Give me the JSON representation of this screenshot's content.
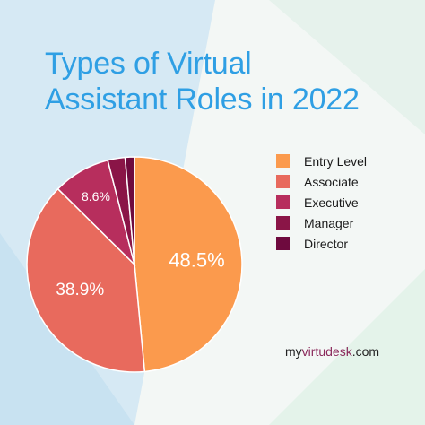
{
  "title_line1": "Types of Virtual",
  "title_line2": "Assistant Roles in 2022",
  "colors": {
    "title": "#2f9fe4",
    "entry_level": "#fb9a4d",
    "associate": "#e86a5d",
    "executive": "#b72e5d",
    "manager": "#8a1547",
    "director": "#6e0a3e"
  },
  "chart_data": {
    "type": "pie",
    "categories": [
      "Entry Level",
      "Associate",
      "Executive",
      "Manager",
      "Director"
    ],
    "values": [
      48.5,
      38.9,
      8.6,
      2.6,
      1.4
    ],
    "labels": [
      "48.5%",
      "38.9%",
      "8.6%",
      "",
      ""
    ],
    "legend_position": "right"
  },
  "brand": {
    "prefix": "my",
    "accent": "virtudesk",
    "suffix": ".com"
  }
}
